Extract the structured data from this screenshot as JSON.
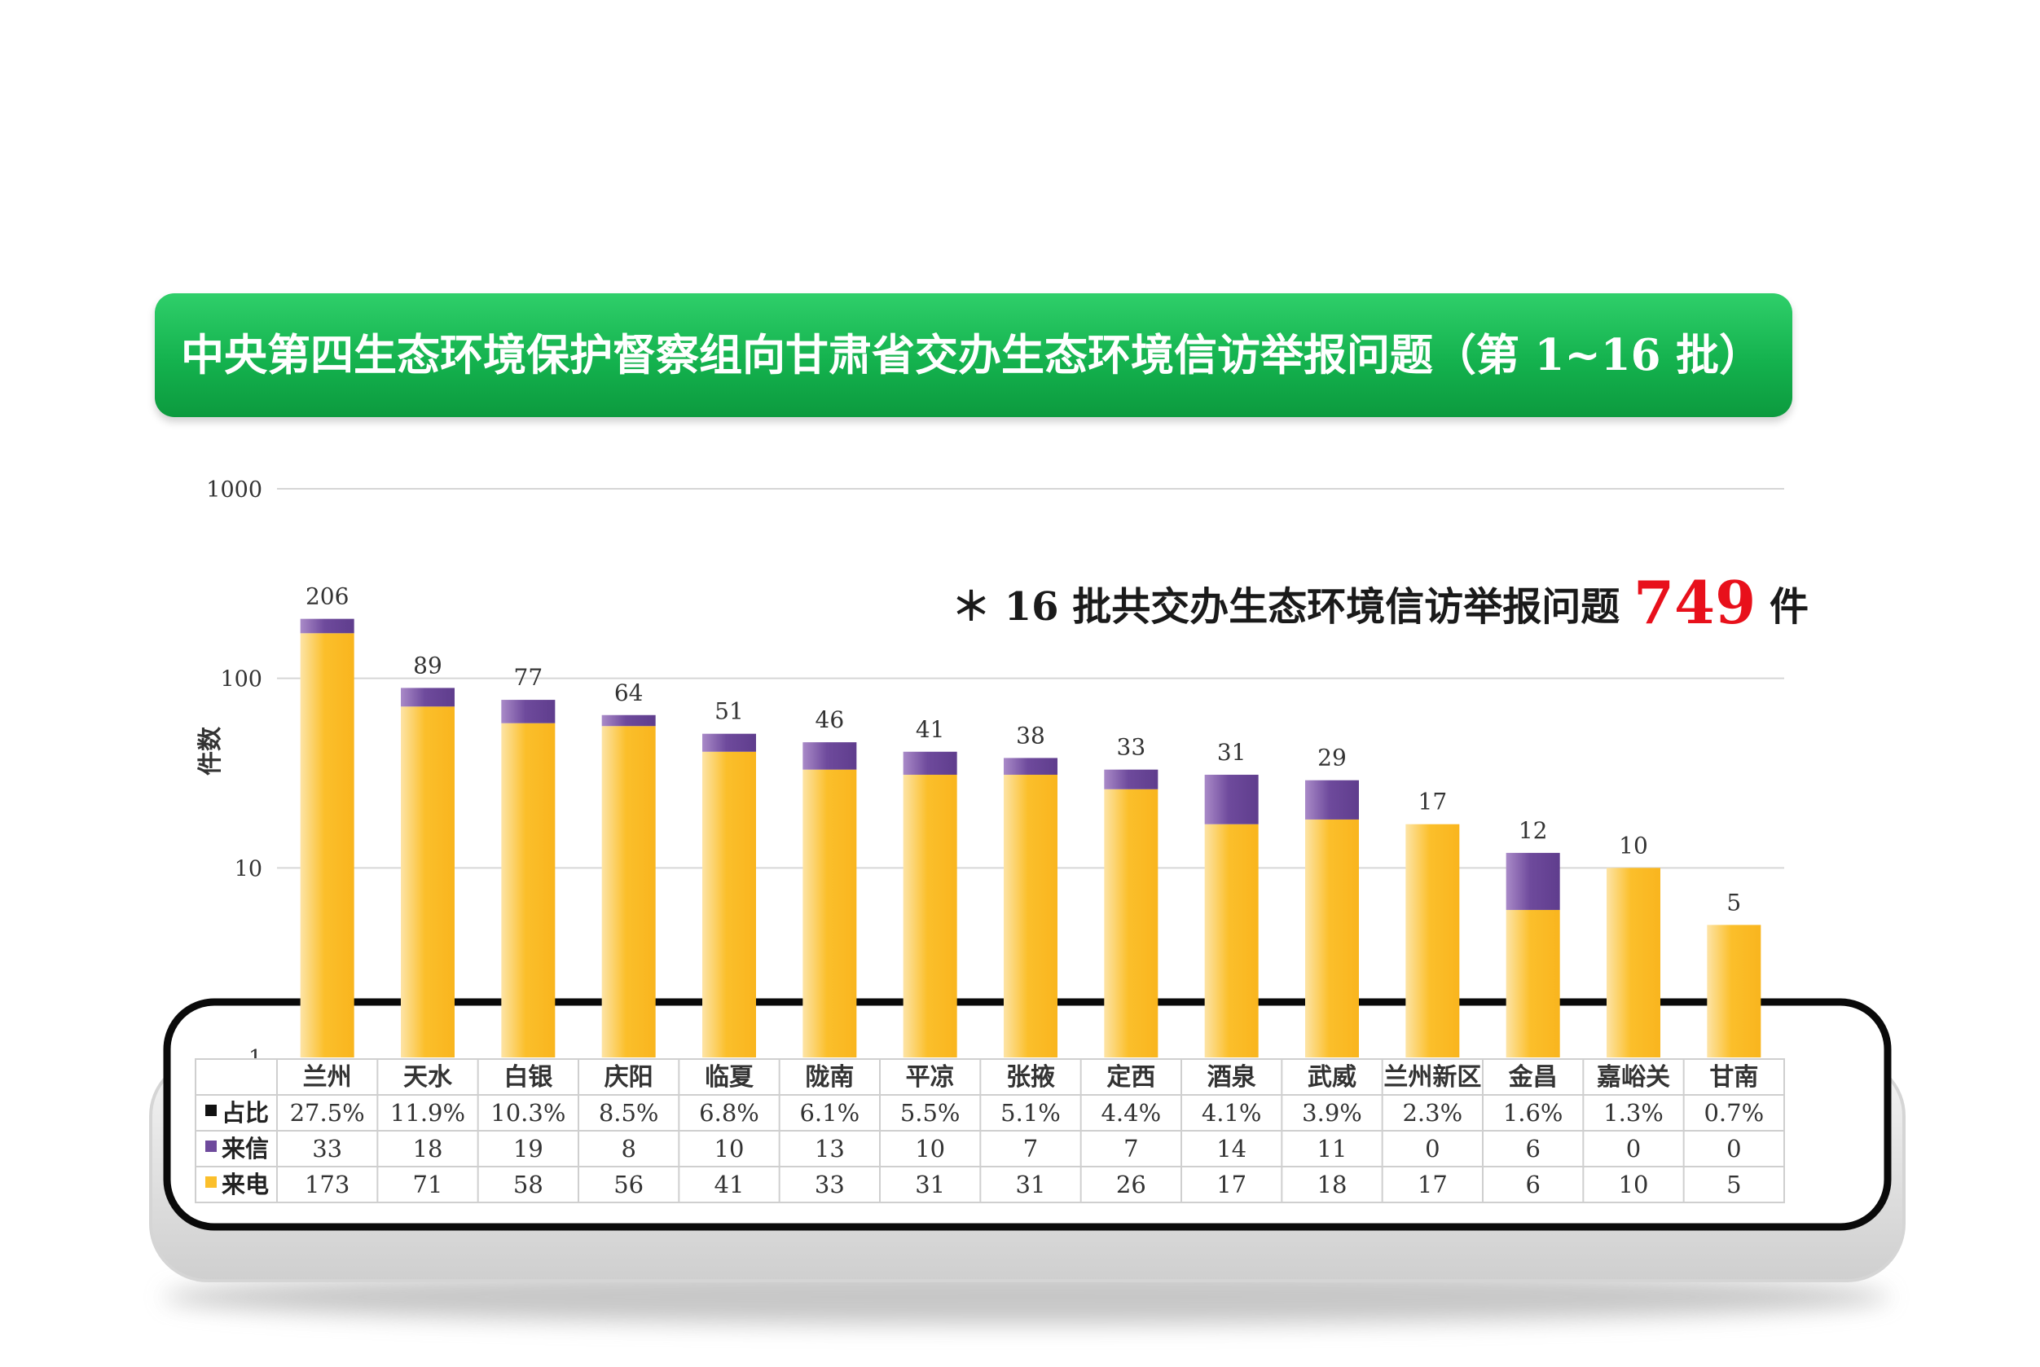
{
  "title": "中央第四生态环境保护督察组向甘肃省交办生态环境信访举报问题（第 1~16 批）",
  "annotation": {
    "prefix": "＊ 16 批共交办生态环境信访举报问题",
    "total": "749",
    "suffix": "件"
  },
  "colors": {
    "banner": "#14b24e",
    "letter": "#6e4a9c",
    "phone": "#fbbf2b",
    "total_highlight": "#e8101b"
  },
  "chart_data": {
    "type": "bar",
    "stacked": true,
    "yscale": "log",
    "ylim": [
      1,
      1000
    ],
    "yticks": [
      "1",
      "10",
      "100",
      "1000"
    ],
    "ylabel": "件数",
    "grid": true,
    "categories": [
      "兰州",
      "天水",
      "白银",
      "庆阳",
      "临夏",
      "陇南",
      "平凉",
      "张掖",
      "定西",
      "酒泉",
      "武威",
      "兰州新区",
      "金昌",
      "嘉峪关",
      "甘南"
    ],
    "totals": [
      206,
      89,
      77,
      64,
      51,
      46,
      41,
      38,
      33,
      31,
      29,
      17,
      12,
      10,
      5
    ],
    "series": [
      {
        "name": "来电",
        "values": [
          173,
          71,
          58,
          56,
          41,
          33,
          31,
          31,
          26,
          17,
          18,
          17,
          6,
          10,
          5
        ]
      },
      {
        "name": "来信",
        "values": [
          33,
          18,
          19,
          8,
          10,
          13,
          10,
          7,
          7,
          14,
          11,
          0,
          6,
          0,
          0
        ]
      }
    ],
    "table": {
      "share_label": "占比",
      "share": [
        "27.5%",
        "11.9%",
        "10.3%",
        "8.5%",
        "6.8%",
        "6.1%",
        "5.5%",
        "5.1%",
        "4.4%",
        "4.1%",
        "3.9%",
        "2.3%",
        "1.6%",
        "1.3%",
        "0.7%"
      ]
    }
  }
}
